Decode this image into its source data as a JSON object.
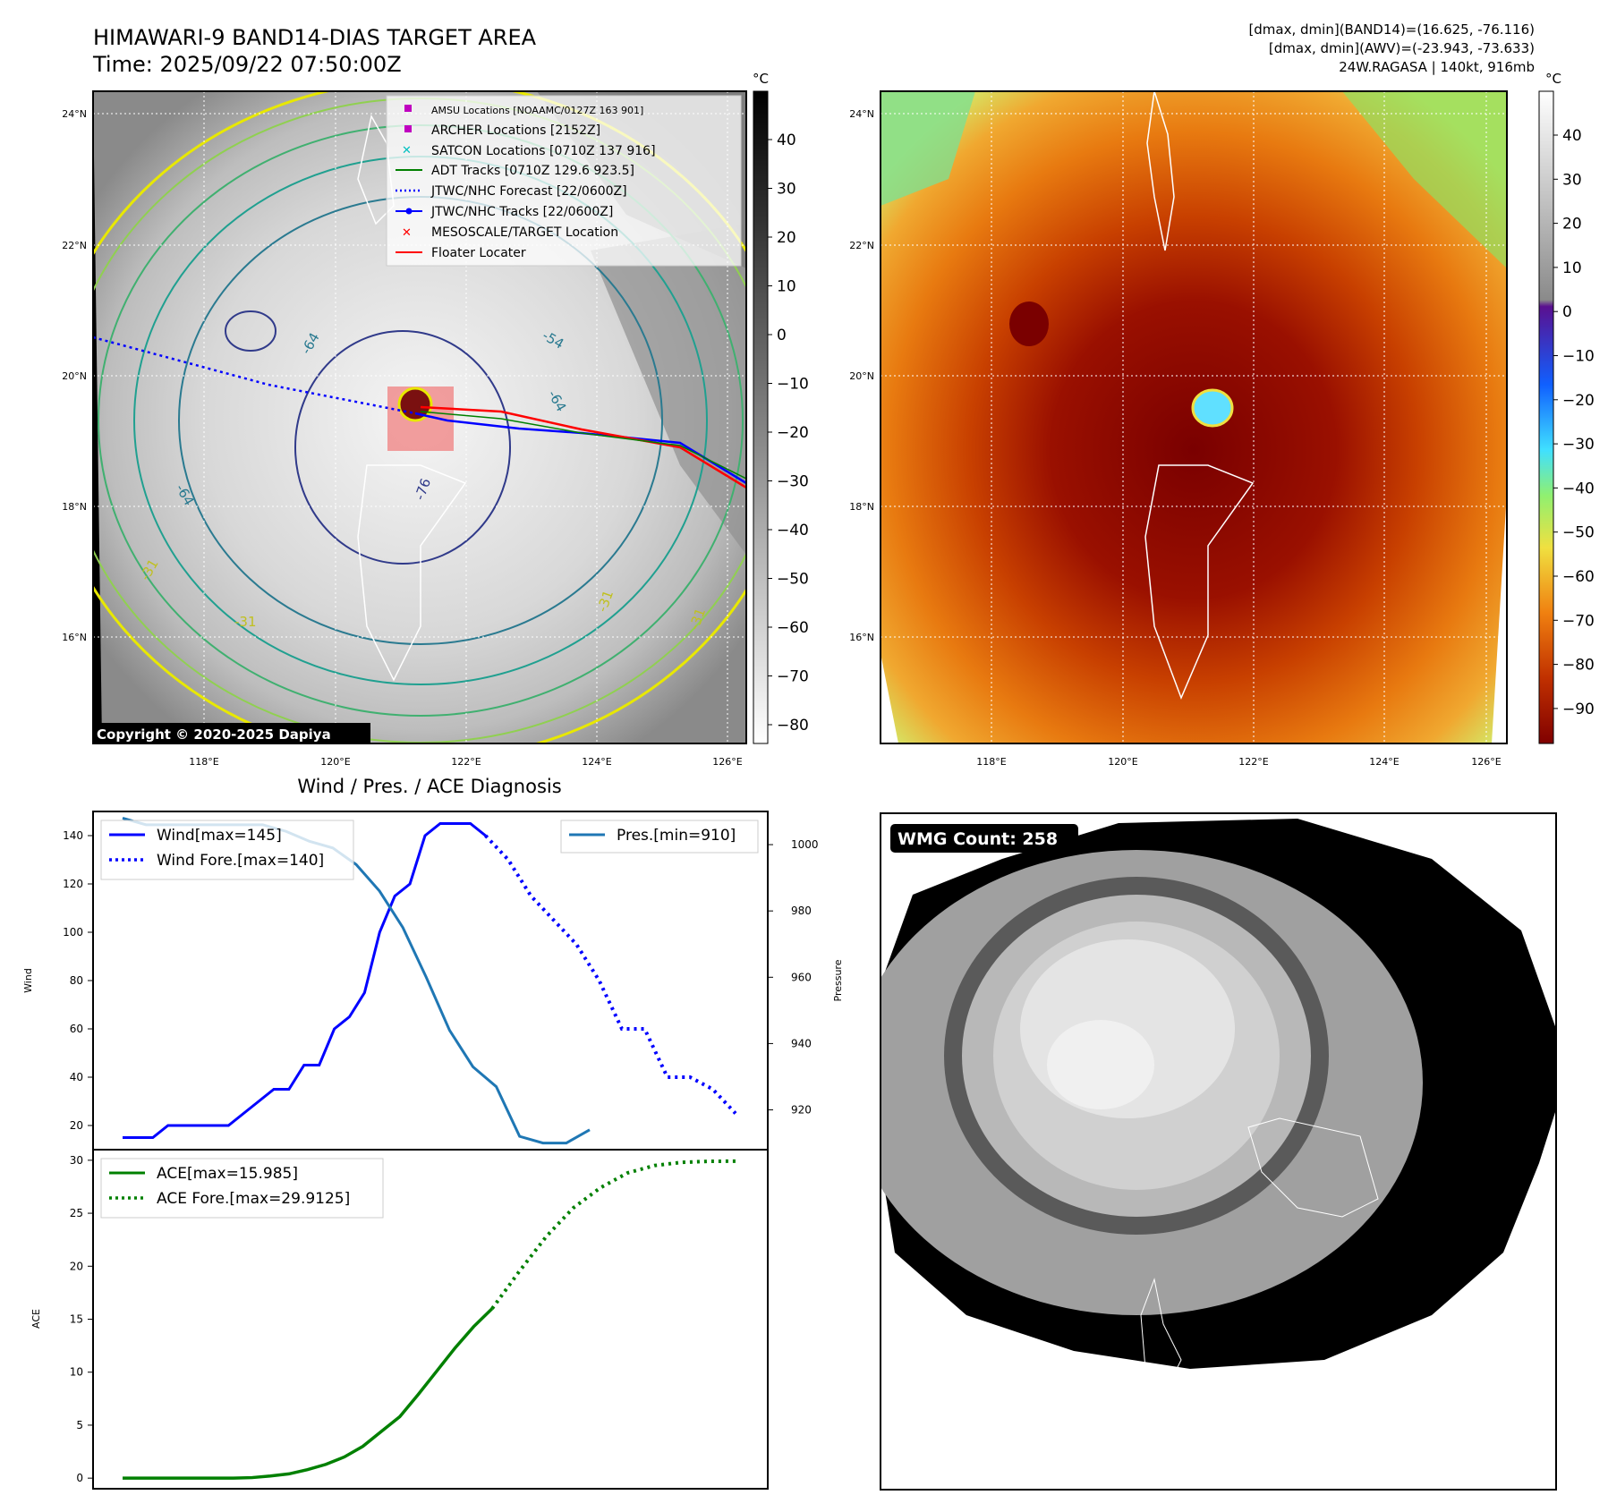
{
  "header": {
    "title": "HIMAWARI-9 BAND14-DIAS TARGET AREA",
    "time": "Time: 2025/09/22 07:50:00Z",
    "stats": [
      "[dmax, dmin](BAND14)=(16.625, -76.116)",
      "[dmax, dmin](AWV)=(-23.943, -73.633)",
      "24W.RAGASA | 140kt, 916mb"
    ]
  },
  "map_common": {
    "lat_labels": [
      "24°N",
      "22°N",
      "20°N",
      "18°N",
      "16°N"
    ],
    "lon_labels": [
      "118°E",
      "120°E",
      "122°E",
      "124°E",
      "126°E"
    ],
    "unit": "°C"
  },
  "ir_panel": {
    "colorbar_ticks": [
      "40",
      "30",
      "20",
      "10",
      "0",
      "−10",
      "−20",
      "−30",
      "−40",
      "−50",
      "−60",
      "−70",
      "−80"
    ],
    "contour_labels": [
      "-64",
      "-54",
      "-64",
      "-76",
      "-64",
      "-31",
      "-31",
      "-31",
      "-31"
    ],
    "copyright": "Copyright © 2020-2025 Dapiya",
    "legend": [
      {
        "label": "AMSU Locations [NOAAMC/0127Z 163 901]",
        "marker": "square",
        "color": "#c000c0"
      },
      {
        "label": "ARCHER Locations [2152Z]",
        "marker": "square",
        "color": "#c000c0"
      },
      {
        "label": "SATCON Locations [0710Z 137 916]",
        "marker": "x",
        "color": "#00c0c0"
      },
      {
        "label": "ADT Tracks [0710Z 129.6 923.5]",
        "marker": "line",
        "color": "#008000"
      },
      {
        "label": "JTWC/NHC Forecast [22/0600Z]",
        "marker": "dotted",
        "color": "#0000ff"
      },
      {
        "label": "JTWC/NHC Tracks [22/0600Z]",
        "marker": "dotline",
        "color": "#0000ff"
      },
      {
        "label": "MESOSCALE/TARGET Location",
        "marker": "x",
        "color": "#ff0000"
      },
      {
        "label": "Floater Locater",
        "marker": "line",
        "color": "#ff0000"
      }
    ]
  },
  "awv_panel": {
    "colorbar_ticks": [
      "40",
      "30",
      "20",
      "10",
      "0",
      "−10",
      "−20",
      "−30",
      "−40",
      "−50",
      "−60",
      "−70",
      "−80",
      "−90"
    ]
  },
  "diag_panel": {
    "title": "Wind / Pres. / ACE Diagnosis",
    "wind_axis_label": "Wind",
    "pressure_axis_label": "Pressure",
    "ace_axis_label": "ACE",
    "wind_ticks": [
      "20",
      "40",
      "60",
      "80",
      "100",
      "120",
      "140"
    ],
    "pres_ticks": [
      "920",
      "940",
      "960",
      "980",
      "1000"
    ],
    "ace_ticks": [
      "0",
      "5",
      "10",
      "15",
      "20",
      "25",
      "30"
    ],
    "legend_wind": "Wind[max=145]",
    "legend_wind_fore": "Wind Fore.[max=140]",
    "legend_pres": "Pres.[min=910]",
    "legend_ace": "ACE[max=15.985]",
    "legend_ace_fore": "ACE Fore.[max=29.9125]"
  },
  "wmg_panel": {
    "label": "WMG Count: 258"
  },
  "chart_data": [
    {
      "type": "line",
      "title": "Wind / Pres. / ACE Diagnosis",
      "ylabel": "Wind",
      "ylim": [
        10,
        150
      ],
      "series": [
        {
          "name": "Wind[max=145]",
          "values": [
            15,
            15,
            15,
            20,
            20,
            20,
            20,
            20,
            25,
            30,
            35,
            35,
            45,
            45,
            60,
            65,
            75,
            100,
            115,
            120,
            140,
            145,
            145,
            145,
            140
          ]
        },
        {
          "name": "Wind Fore.[max=140]",
          "values": [
            140,
            130,
            115,
            105,
            95,
            80,
            60,
            60,
            40,
            40,
            35,
            25
          ]
        }
      ]
    },
    {
      "type": "line",
      "ylabel": "Pressure",
      "ylim": [
        908,
        1010
      ],
      "series": [
        {
          "name": "Pres.[min=910]",
          "values": [
            1008,
            1006,
            1006,
            1006,
            1006,
            1006,
            1006,
            1004,
            1001,
            999,
            994,
            986,
            975,
            960,
            944,
            933,
            927,
            912,
            910,
            910,
            914
          ]
        }
      ]
    },
    {
      "type": "line",
      "ylabel": "ACE",
      "ylim": [
        -1,
        31
      ],
      "series": [
        {
          "name": "ACE[max=15.985]",
          "values": [
            0,
            0,
            0,
            0,
            0,
            0,
            0,
            0.05,
            0.2,
            0.4,
            0.8,
            1.3,
            2,
            3,
            4.4,
            5.8,
            7.9,
            10.1,
            12.3,
            14.3,
            16.0
          ]
        },
        {
          "name": "ACE Fore.[max=29.9125]",
          "values": [
            16.0,
            19.5,
            22.8,
            25.5,
            27.4,
            28.8,
            29.5,
            29.8,
            29.9,
            29.9125
          ]
        }
      ]
    }
  ]
}
